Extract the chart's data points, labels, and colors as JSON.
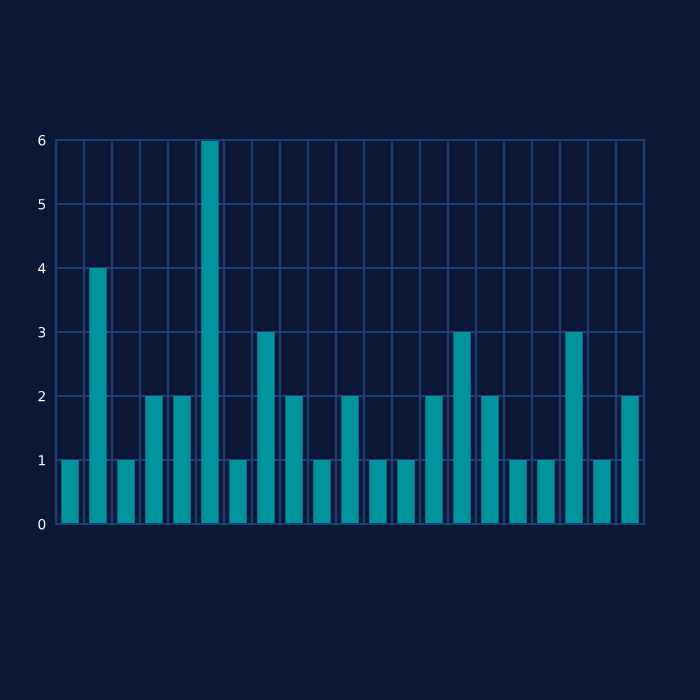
{
  "chart_data": {
    "type": "bar",
    "categories": [
      null,
      null,
      null,
      null,
      null,
      null,
      null,
      null,
      null,
      null,
      null,
      null,
      null,
      null,
      null,
      null,
      null,
      null,
      null,
      null,
      null
    ],
    "values": [
      1,
      4,
      1,
      2,
      2,
      6,
      1,
      3,
      2,
      1,
      2,
      1,
      1,
      2,
      3,
      2,
      1,
      1,
      3,
      1,
      2
    ],
    "color": "#00949f",
    "ylim": [
      0,
      6
    ],
    "yticks": [
      0,
      1,
      2,
      3,
      4,
      5,
      6
    ],
    "grid": true
  }
}
